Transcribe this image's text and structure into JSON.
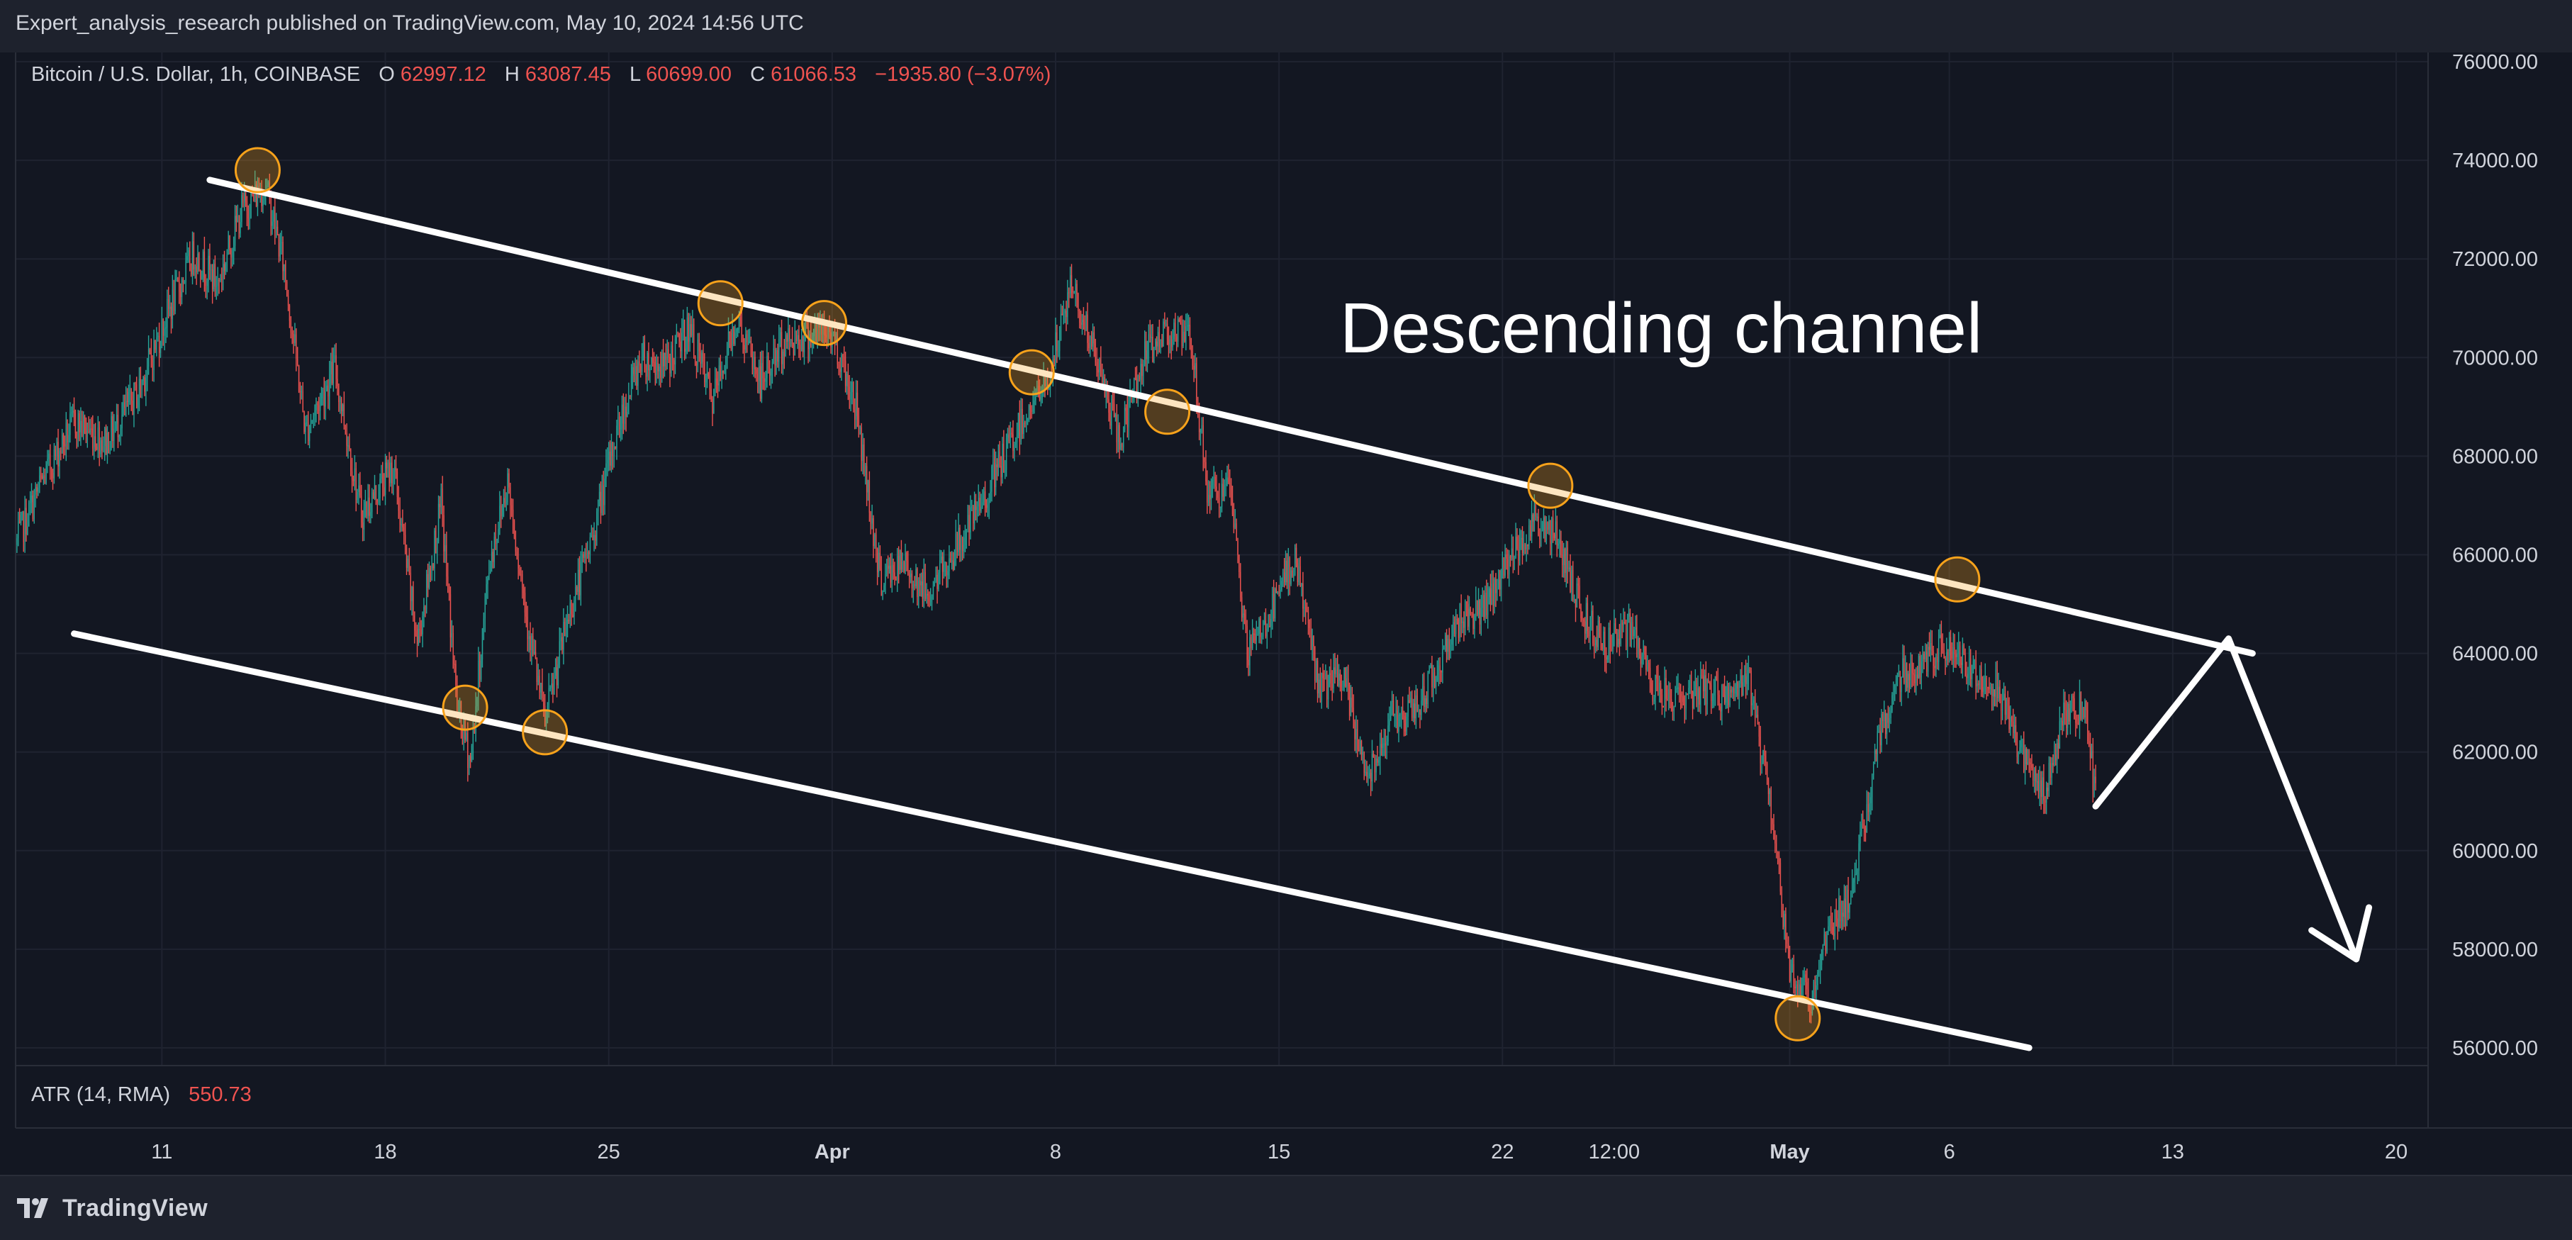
{
  "header": {
    "publish_line": "Expert_analysis_research published on TradingView.com, May 10, 2024 14:56 UTC"
  },
  "legend": {
    "symbol": "Bitcoin / U.S. Dollar, 1h, COINBASE",
    "o_label": "O",
    "o_value": "62997.12",
    "h_label": "H",
    "h_value": "63087.45",
    "l_label": "L",
    "l_value": "60699.00",
    "c_label": "C",
    "c_value": "61066.53",
    "change": "−1935.80 (−3.07%)"
  },
  "indicator": {
    "label": "ATR (14, RMA)",
    "value": "550.73"
  },
  "annotation": "Descending channel",
  "footer": {
    "brand": "TradingView"
  },
  "colors": {
    "up": "#26a69a",
    "down": "#ef5350",
    "text": "#d1d4dc",
    "background": "#131722",
    "marker": "#f7a21b",
    "drawing": "#ffffff"
  },
  "icons": {
    "brand_logo": "tradingview-logo-icon"
  },
  "chart_data": {
    "type": "candlestick",
    "timeframe": "1h",
    "price_axis": {
      "ticks": [
        "56000.00",
        "58000.00",
        "60000.00",
        "62000.00",
        "64000.00",
        "66000.00",
        "68000.00",
        "70000.00",
        "72000.00",
        "74000.00",
        "76000.00"
      ],
      "range": [
        55700,
        76300
      ]
    },
    "time_axis": {
      "range": [
        "2024-03-06 10:00",
        "2024-05-21 00:00"
      ],
      "ticks": [
        {
          "label": "11",
          "x": "2024-03-11 00:00",
          "bold": false
        },
        {
          "label": "18",
          "x": "2024-03-18 00:00",
          "bold": false
        },
        {
          "label": "25",
          "x": "2024-03-25 00:00",
          "bold": false
        },
        {
          "label": "Apr",
          "x": "2024-04-01 00:00",
          "bold": true
        },
        {
          "label": "8",
          "x": "2024-04-08 00:00",
          "bold": false
        },
        {
          "label": "15",
          "x": "2024-04-15 00:00",
          "bold": false
        },
        {
          "label": "22",
          "x": "2024-04-22 00:00",
          "bold": false
        },
        {
          "label": "12:00",
          "x": "2024-04-25 12:00",
          "bold": false
        },
        {
          "label": "May",
          "x": "2024-05-01 00:00",
          "bold": true
        },
        {
          "label": "6",
          "x": "2024-05-06 00:00",
          "bold": false
        },
        {
          "label": "13",
          "x": "2024-05-13 00:00",
          "bold": false
        },
        {
          "label": "20",
          "x": "2024-05-20 00:00",
          "bold": false
        }
      ]
    },
    "price_path": [
      [
        "2024-03-06 10:00",
        66200
      ],
      [
        "2024-03-07 06:00",
        67500
      ],
      [
        "2024-03-08 06:00",
        68700
      ],
      [
        "2024-03-09 06:00",
        68300
      ],
      [
        "2024-03-10 06:00",
        69300
      ],
      [
        "2024-03-11 06:00",
        71000
      ],
      [
        "2024-03-12 00:00",
        72100
      ],
      [
        "2024-03-12 18:00",
        71500
      ],
      [
        "2024-03-13 12:00",
        73000
      ],
      [
        "2024-03-14 06:00",
        73500
      ],
      [
        "2024-03-14 20:00",
        71800
      ],
      [
        "2024-03-15 12:00",
        68500
      ],
      [
        "2024-03-16 10:00",
        69800
      ],
      [
        "2024-03-17 06:00",
        66800
      ],
      [
        "2024-03-18 06:00",
        67800
      ],
      [
        "2024-03-19 00:00",
        64200
      ],
      [
        "2024-03-19 18:00",
        67000
      ],
      [
        "2024-03-20 06:00",
        62900
      ],
      [
        "2024-03-20 16:00",
        61800
      ],
      [
        "2024-03-21 06:00",
        65800
      ],
      [
        "2024-03-21 20:00",
        67500
      ],
      [
        "2024-03-22 10:00",
        64800
      ],
      [
        "2024-03-23 00:00",
        62600
      ],
      [
        "2024-03-23 18:00",
        64800
      ],
      [
        "2024-03-24 12:00",
        66400
      ],
      [
        "2024-03-25 06:00",
        68500
      ],
      [
        "2024-03-26 00:00",
        70000
      ],
      [
        "2024-03-26 18:00",
        69800
      ],
      [
        "2024-03-27 12:00",
        70600
      ],
      [
        "2024-03-28 06:00",
        69100
      ],
      [
        "2024-03-29 00:00",
        70800
      ],
      [
        "2024-03-29 18:00",
        69500
      ],
      [
        "2024-03-30 12:00",
        70300
      ],
      [
        "2024-03-31 06:00",
        70500
      ],
      [
        "2024-04-01 00:00",
        70500
      ],
      [
        "2024-04-01 18:00",
        69000
      ],
      [
        "2024-04-02 12:00",
        65500
      ],
      [
        "2024-04-03 06:00",
        65800
      ],
      [
        "2024-04-04 00:00",
        65200
      ],
      [
        "2024-04-04 18:00",
        66000
      ],
      [
        "2024-04-05 12:00",
        66800
      ],
      [
        "2024-04-06 06:00",
        67800
      ],
      [
        "2024-04-07 00:00",
        68800
      ],
      [
        "2024-04-07 18:00",
        69500
      ],
      [
        "2024-04-08 12:00",
        71500
      ],
      [
        "2024-04-09 06:00",
        70000
      ],
      [
        "2024-04-10 00:00",
        68300
      ],
      [
        "2024-04-10 18:00",
        70000
      ],
      [
        "2024-04-11 12:00",
        70600
      ],
      [
        "2024-04-12 06:00",
        70300
      ],
      [
        "2024-04-12 18:00",
        67300
      ],
      [
        "2024-04-13 12:00",
        67200
      ],
      [
        "2024-04-14 00:00",
        64000
      ],
      [
        "2024-04-14 18:00",
        64800
      ],
      [
        "2024-04-15 12:00",
        66000
      ],
      [
        "2024-04-16 06:00",
        63300
      ],
      [
        "2024-04-17 00:00",
        63500
      ],
      [
        "2024-04-17 18:00",
        61500
      ],
      [
        "2024-04-18 12:00",
        62700
      ],
      [
        "2024-04-19 06:00",
        62800
      ],
      [
        "2024-04-20 00:00",
        63800
      ],
      [
        "2024-04-20 18:00",
        64800
      ],
      [
        "2024-04-21 12:00",
        64900
      ],
      [
        "2024-04-22 06:00",
        66000
      ],
      [
        "2024-04-23 00:00",
        66700
      ],
      [
        "2024-04-23 18:00",
        66300
      ],
      [
        "2024-04-24 12:00",
        64800
      ],
      [
        "2024-04-25 06:00",
        64200
      ],
      [
        "2024-04-26 00:00",
        64500
      ],
      [
        "2024-04-26 18:00",
        63300
      ],
      [
        "2024-04-27 12:00",
        63100
      ],
      [
        "2024-04-28 06:00",
        63300
      ],
      [
        "2024-04-29 00:00",
        63100
      ],
      [
        "2024-04-29 18:00",
        63400
      ],
      [
        "2024-04-30 12:00",
        60500
      ],
      [
        "2024-05-01 00:00",
        57500
      ],
      [
        "2024-05-01 16:00",
        57000
      ],
      [
        "2024-05-02 06:00",
        58500
      ],
      [
        "2024-05-03 00:00",
        59200
      ],
      [
        "2024-05-03 18:00",
        62200
      ],
      [
        "2024-05-04 12:00",
        63600
      ],
      [
        "2024-05-05 06:00",
        63800
      ],
      [
        "2024-05-06 00:00",
        64200
      ],
      [
        "2024-05-06 18:00",
        63600
      ],
      [
        "2024-05-07 12:00",
        63400
      ],
      [
        "2024-05-08 06:00",
        62000
      ],
      [
        "2024-05-09 00:00",
        61100
      ],
      [
        "2024-05-09 14:00",
        62800
      ],
      [
        "2024-05-10 06:00",
        62900
      ],
      [
        "2024-05-10 14:00",
        61066
      ]
    ],
    "channel": {
      "upper": [
        [
          "2024-03-12 12:00",
          73600
        ],
        [
          "2024-05-15 12:00",
          64000
        ]
      ],
      "lower": [
        [
          "2024-03-08 06:00",
          64400
        ],
        [
          "2024-05-08 12:00",
          56000
        ]
      ]
    },
    "touch_points": [
      [
        "2024-03-14 00:00",
        73800
      ],
      [
        "2024-03-20 12:00",
        62900
      ],
      [
        "2024-03-23 00:00",
        62400
      ],
      [
        "2024-03-28 12:00",
        71100
      ],
      [
        "2024-03-31 18:00",
        70700
      ],
      [
        "2024-04-07 06:00",
        69700
      ],
      [
        "2024-04-11 12:00",
        68900
      ],
      [
        "2024-04-23 12:00",
        67400
      ],
      [
        "2024-05-01 06:00",
        56600
      ],
      [
        "2024-05-06 06:00",
        65500
      ]
    ],
    "projection": [
      [
        "2024-05-10 14:00",
        60900
      ],
      [
        "2024-05-14 18:00",
        64300
      ],
      [
        "2024-05-18 18:00",
        57800
      ]
    ]
  }
}
